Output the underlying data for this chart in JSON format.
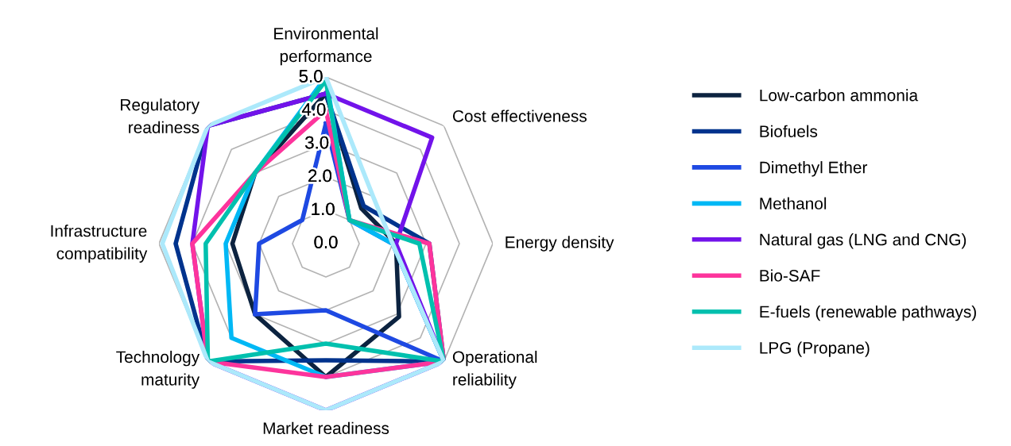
{
  "chart_data": {
    "type": "radar",
    "categories": [
      "Environmental\nperformance",
      "Cost effectiveness",
      "Energy density",
      "Operational\nreliability",
      "Market readiness",
      "Technology\nmaturity",
      "Infrastructure\ncompatibility",
      "Regulatory\nreadiness"
    ],
    "ylim": [
      0,
      5
    ],
    "yticks": [
      {
        "value": 0,
        "label": "0.0"
      },
      {
        "value": 1,
        "label": "1.0"
      },
      {
        "value": 2,
        "label": "2.0"
      },
      {
        "value": 3,
        "label": "3.0"
      },
      {
        "value": 4,
        "label": "4.0"
      },
      {
        "value": 5,
        "label": "5.0"
      }
    ],
    "grid": true,
    "legend": "right",
    "marker": "none",
    "line_style": "solid",
    "series": [
      {
        "name": "Low-carbon ammonia",
        "color": "#0c2340",
        "values": [
          4.5,
          1.5,
          2.1,
          3.1,
          4.0,
          3.0,
          2.8,
          3.0
        ]
      },
      {
        "name": "Biofuels",
        "color": "#00338d",
        "values": [
          4.5,
          1.6,
          3.1,
          5.0,
          3.5,
          5.0,
          4.5,
          5.0
        ]
      },
      {
        "name": "Dimethyl Ether",
        "color": "#1e49e2",
        "values": [
          3.6,
          1.0,
          2.0,
          5.0,
          2.0,
          3.0,
          2.0,
          1.0
        ]
      },
      {
        "name": "Methanol",
        "color": "#00b8f5",
        "values": [
          5.0,
          1.0,
          2.0,
          5.0,
          4.0,
          4.0,
          3.0,
          3.0
        ]
      },
      {
        "name": "Natural gas (LNG and CNG)",
        "color": "#7213ea",
        "values": [
          4.5,
          4.5,
          2.1,
          5.0,
          5.0,
          5.0,
          4.0,
          5.0
        ]
      },
      {
        "name": "Bio-SAF",
        "color": "#fd349c",
        "values": [
          4.0,
          1.0,
          3.1,
          5.0,
          4.0,
          5.0,
          4.0,
          3.0
        ]
      },
      {
        "name": "E-fuels (renewable pathways)",
        "color": "#00c0ae",
        "values": [
          4.9,
          1.0,
          2.8,
          5.0,
          3.0,
          5.0,
          3.6,
          3.0
        ]
      },
      {
        "name": "LPG (Propane)",
        "color": "#ace9fb",
        "values": [
          5.0,
          2.0,
          2.0,
          5.0,
          5.0,
          5.0,
          4.9,
          5.0
        ]
      }
    ]
  }
}
